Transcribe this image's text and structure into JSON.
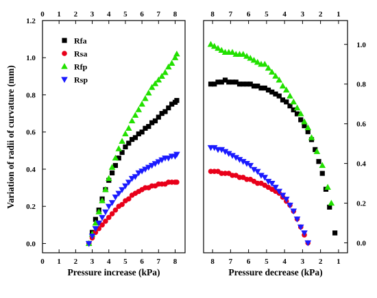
{
  "chart_data": {
    "type": "scatter",
    "ylabel": "Variation of radii of curvature (mm)",
    "colors": {
      "Rfa": "#000000",
      "Rsa": "#e8001a",
      "Rfp": "#22e000",
      "Rsp": "#1a1aff"
    },
    "legend": {
      "placement": "top-left",
      "entries": [
        "Rfa",
        "Rsa",
        "Rfp",
        "Rsp"
      ]
    },
    "panels": [
      {
        "id": "increase",
        "xlabel": "Pressure increase (kPa)",
        "xlim": [
          0,
          8.6
        ],
        "ylim": [
          -0.05,
          1.2
        ],
        "x_ticks": [
          0,
          1,
          2,
          3,
          4,
          5,
          6,
          7,
          8
        ],
        "x_tick_labels_bottom": [
          "0",
          "1",
          "2",
          "3",
          "4",
          "5",
          "6",
          "7",
          "8"
        ],
        "x_tick_labels_top": [
          "0",
          "1",
          "2",
          "3",
          "4",
          "5",
          "6",
          "7",
          "8"
        ],
        "y_ticks": [
          0,
          0.2,
          0.4,
          0.6,
          0.8,
          1.0,
          1.2
        ],
        "y_tick_labels": [
          "0.0",
          "0.2",
          "0.4",
          "0.6",
          "0.8",
          "1.0",
          "1.2"
        ],
        "series": [
          {
            "name": "Rfa",
            "marker": "square",
            "x": [
              2.8,
              3.0,
              3.2,
              3.4,
              3.6,
              3.8,
              4.0,
              4.2,
              4.4,
              4.6,
              4.8,
              5.0,
              5.2,
              5.4,
              5.6,
              5.8,
              6.0,
              6.2,
              6.4,
              6.6,
              6.8,
              7.0,
              7.2,
              7.4,
              7.6,
              7.8,
              8.0,
              8.1
            ],
            "y": [
              0.0,
              0.06,
              0.13,
              0.18,
              0.24,
              0.29,
              0.34,
              0.38,
              0.42,
              0.46,
              0.49,
              0.52,
              0.54,
              0.56,
              0.57,
              0.59,
              0.6,
              0.62,
              0.63,
              0.65,
              0.66,
              0.68,
              0.7,
              0.71,
              0.73,
              0.75,
              0.76,
              0.77
            ]
          },
          {
            "name": "Rsa",
            "marker": "circle",
            "x": [
              2.8,
              3.0,
              3.2,
              3.4,
              3.6,
              3.8,
              4.0,
              4.2,
              4.4,
              4.6,
              4.8,
              5.0,
              5.2,
              5.4,
              5.6,
              5.8,
              6.0,
              6.2,
              6.4,
              6.6,
              6.8,
              7.0,
              7.2,
              7.4,
              7.6,
              7.8,
              8.0,
              8.1
            ],
            "y": [
              0.0,
              0.03,
              0.06,
              0.08,
              0.1,
              0.12,
              0.14,
              0.16,
              0.18,
              0.2,
              0.21,
              0.23,
              0.24,
              0.26,
              0.27,
              0.28,
              0.29,
              0.3,
              0.3,
              0.31,
              0.31,
              0.32,
              0.32,
              0.32,
              0.33,
              0.33,
              0.33,
              0.33
            ]
          },
          {
            "name": "Rfp",
            "marker": "triangle-up",
            "x": [
              2.8,
              3.0,
              3.2,
              3.4,
              3.6,
              3.8,
              4.0,
              4.2,
              4.4,
              4.6,
              4.8,
              5.0,
              5.2,
              5.4,
              5.6,
              5.8,
              6.0,
              6.2,
              6.4,
              6.6,
              6.8,
              7.0,
              7.2,
              7.4,
              7.6,
              7.8,
              8.0,
              8.1
            ],
            "y": [
              0.0,
              0.05,
              0.11,
              0.17,
              0.23,
              0.29,
              0.35,
              0.41,
              0.46,
              0.51,
              0.55,
              0.59,
              0.62,
              0.66,
              0.69,
              0.72,
              0.75,
              0.78,
              0.81,
              0.84,
              0.86,
              0.88,
              0.9,
              0.92,
              0.95,
              0.97,
              1.0,
              1.02
            ]
          },
          {
            "name": "Rsp",
            "marker": "triangle-down",
            "x": [
              2.8,
              3.0,
              3.2,
              3.4,
              3.6,
              3.8,
              4.0,
              4.2,
              4.4,
              4.6,
              4.8,
              5.0,
              5.2,
              5.4,
              5.6,
              5.8,
              6.0,
              6.2,
              6.4,
              6.6,
              6.8,
              7.0,
              7.2,
              7.4,
              7.6,
              7.8,
              8.0,
              8.1
            ],
            "y": [
              0.0,
              0.04,
              0.08,
              0.11,
              0.14,
              0.17,
              0.2,
              0.22,
              0.25,
              0.27,
              0.29,
              0.31,
              0.33,
              0.35,
              0.36,
              0.38,
              0.39,
              0.4,
              0.41,
              0.42,
              0.43,
              0.44,
              0.45,
              0.46,
              0.46,
              0.47,
              0.47,
              0.48
            ]
          }
        ]
      },
      {
        "id": "decrease",
        "xlabel": "Pressure decrease (kPa)",
        "xlim": [
          8.5,
          0.5
        ],
        "ylim": [
          -0.05,
          1.12
        ],
        "x_ticks": [
          8,
          7,
          6,
          5,
          4,
          3,
          2,
          1
        ],
        "x_tick_labels_bottom": [
          "8",
          "7",
          "6",
          "5",
          "4",
          "3",
          "2",
          "1"
        ],
        "x_tick_labels_top": [
          "8",
          "7",
          "6",
          "5",
          "4",
          "3",
          "2",
          "1"
        ],
        "y_ticks": [
          0,
          0.2,
          0.4,
          0.6,
          0.8,
          1.0
        ],
        "y_tick_labels": [
          "0.0",
          "0.2",
          "0.4",
          "0.6",
          "0.8",
          "1.0"
        ],
        "series": [
          {
            "name": "Rfa",
            "marker": "square",
            "x": [
              8.1,
              7.9,
              7.7,
              7.5,
              7.3,
              7.1,
              6.9,
              6.7,
              6.5,
              6.3,
              6.1,
              5.9,
              5.7,
              5.5,
              5.3,
              5.1,
              4.9,
              4.7,
              4.5,
              4.3,
              4.1,
              3.9,
              3.7,
              3.5,
              3.3,
              3.1,
              2.9,
              2.7,
              2.5,
              2.3,
              2.1,
              1.9,
              1.7,
              1.5,
              1.2
            ],
            "y": [
              0.8,
              0.8,
              0.81,
              0.81,
              0.82,
              0.81,
              0.81,
              0.81,
              0.8,
              0.8,
              0.8,
              0.8,
              0.79,
              0.79,
              0.78,
              0.78,
              0.77,
              0.76,
              0.75,
              0.74,
              0.72,
              0.71,
              0.69,
              0.67,
              0.65,
              0.62,
              0.59,
              0.56,
              0.52,
              0.47,
              0.41,
              0.35,
              0.27,
              0.18,
              0.05
            ]
          },
          {
            "name": "Rsa",
            "marker": "circle",
            "x": [
              8.1,
              7.9,
              7.7,
              7.5,
              7.3,
              7.1,
              6.9,
              6.7,
              6.5,
              6.3,
              6.1,
              5.9,
              5.7,
              5.5,
              5.3,
              5.1,
              4.9,
              4.7,
              4.5,
              4.3,
              4.1,
              3.9,
              3.7,
              3.5,
              3.3,
              3.1,
              2.9,
              2.7
            ],
            "y": [
              0.36,
              0.36,
              0.36,
              0.35,
              0.35,
              0.35,
              0.34,
              0.34,
              0.33,
              0.33,
              0.32,
              0.32,
              0.31,
              0.3,
              0.3,
              0.29,
              0.28,
              0.27,
              0.26,
              0.25,
              0.23,
              0.21,
              0.19,
              0.16,
              0.12,
              0.08,
              0.04,
              0.0
            ]
          },
          {
            "name": "Rfp",
            "marker": "triangle-up",
            "x": [
              8.1,
              7.9,
              7.7,
              7.5,
              7.3,
              7.1,
              6.9,
              6.7,
              6.5,
              6.3,
              6.1,
              5.9,
              5.7,
              5.5,
              5.3,
              5.1,
              4.9,
              4.7,
              4.5,
              4.3,
              4.1,
              3.9,
              3.7,
              3.5,
              3.3,
              3.1,
              2.9,
              2.7,
              2.5,
              2.2,
              1.9,
              1.6,
              1.4
            ],
            "y": [
              1.0,
              0.99,
              0.98,
              0.97,
              0.96,
              0.96,
              0.96,
              0.95,
              0.95,
              0.95,
              0.94,
              0.93,
              0.92,
              0.91,
              0.9,
              0.9,
              0.88,
              0.86,
              0.84,
              0.82,
              0.79,
              0.77,
              0.74,
              0.71,
              0.68,
              0.65,
              0.61,
              0.58,
              0.53,
              0.46,
              0.39,
              0.28,
              0.2
            ]
          },
          {
            "name": "Rsp",
            "marker": "triangle-down",
            "x": [
              8.1,
              7.9,
              7.7,
              7.5,
              7.3,
              7.1,
              6.9,
              6.7,
              6.5,
              6.3,
              6.1,
              5.9,
              5.7,
              5.5,
              5.3,
              5.1,
              4.9,
              4.7,
              4.5,
              4.3,
              4.1,
              3.9,
              3.7,
              3.5,
              3.3,
              3.1,
              2.9,
              2.7
            ],
            "y": [
              0.48,
              0.48,
              0.47,
              0.47,
              0.46,
              0.45,
              0.44,
              0.43,
              0.42,
              0.41,
              0.4,
              0.39,
              0.37,
              0.36,
              0.34,
              0.33,
              0.31,
              0.3,
              0.28,
              0.26,
              0.24,
              0.22,
              0.19,
              0.16,
              0.12,
              0.08,
              0.05,
              0.0
            ]
          }
        ]
      }
    ]
  }
}
